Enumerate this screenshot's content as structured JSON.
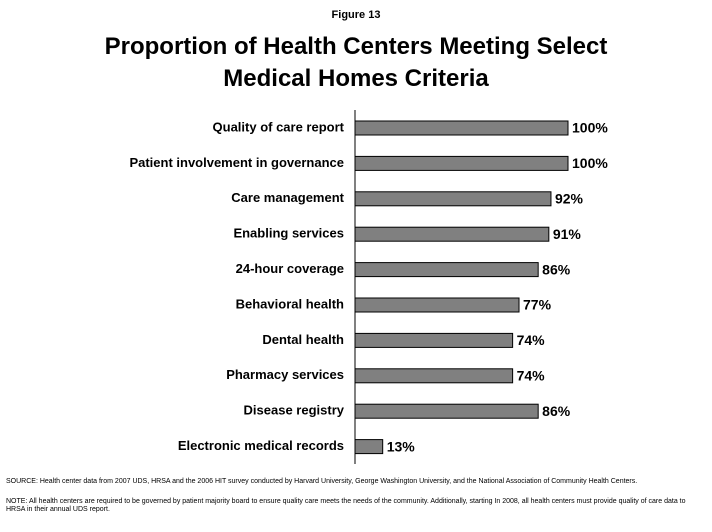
{
  "chart_data": {
    "type": "bar",
    "orientation": "horizontal",
    "label": "Figure 13",
    "title": "Proportion of Health Centers Meeting Select Medical Homes Criteria",
    "categories": [
      "Quality of care report",
      "Patient involvement in governance",
      "Care management",
      "Enabling services",
      "24-hour coverage",
      "Behavioral health",
      "Dental health",
      "Pharmacy services",
      "Disease registry",
      "Electronic medical records"
    ],
    "values": [
      100,
      100,
      92,
      91,
      86,
      77,
      74,
      74,
      86,
      13
    ],
    "value_labels": [
      "100%",
      "100%",
      "92%",
      "91%",
      "86%",
      "77%",
      "74%",
      "74%",
      "86%",
      "13%"
    ],
    "color": "#808080",
    "xlim": [
      0,
      100
    ],
    "source": "SOURCE: Health center data from 2007 UDS, HRSA  and the 2006 HIT survey conducted by Harvard University, George Washington University, and the National Association of Community Health Centers.",
    "note": "NOTE: All health centers are required to be governed by patient majority board to ensure quality care meets the needs of the community.  Additionally, starting In 2008, all health centers must provide quality of care data to HRSA  in their annual UDS report."
  }
}
